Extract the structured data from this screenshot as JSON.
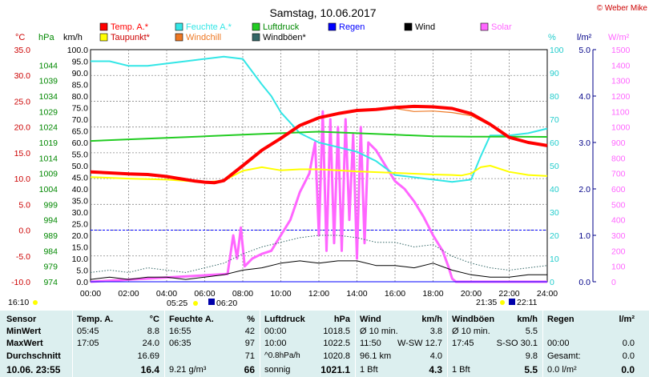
{
  "header": {
    "title": "Samstag, 10.06.2017",
    "copyright": "© Weber Mike"
  },
  "legend": [
    {
      "label": "Temp. A.*",
      "color": "#ff0000"
    },
    {
      "label": "Feuchte A.*",
      "color": "#33e6e6"
    },
    {
      "label": "Luftdruck",
      "color": "#22cc22"
    },
    {
      "label": "Regen",
      "color": "#0000ff"
    },
    {
      "label": "Wind",
      "color": "#000000"
    },
    {
      "label": "Solar",
      "color": "#ff66ff"
    },
    {
      "label": "Taupunkt*",
      "color": "#ffff00"
    },
    {
      "label": "Windchill",
      "color": "#ee7722"
    },
    {
      "label": "Windböen*",
      "color": "#336666"
    }
  ],
  "axes": {
    "temp_unit": "°C",
    "press_unit": "hPa",
    "wind_unit": "km/h",
    "hum_unit": "%",
    "rain_unit": "l/m²",
    "solar_unit": "W/m²",
    "temp_ticks": [
      "35.0",
      "30.0",
      "25.0",
      "20.0",
      "15.0",
      "10.0",
      "5.0",
      "0.0",
      "-5.0",
      "-10.0"
    ],
    "press_ticks": [
      "1044",
      "1039",
      "1034",
      "1029",
      "1024",
      "1019",
      "1014",
      "1009",
      "1004",
      "999",
      "994",
      "989",
      "984",
      "979",
      "974"
    ],
    "wind_ticks": [
      "100.0",
      "95.0",
      "90.0",
      "85.0",
      "80.0",
      "75.0",
      "70.0",
      "65.0",
      "60.0",
      "55.0",
      "50.0",
      "45.0",
      "40.0",
      "35.0",
      "30.0",
      "25.0",
      "20.0",
      "15.0",
      "10.0",
      "5.0",
      "0.0"
    ],
    "hum_ticks": [
      "100",
      "90",
      "80",
      "70",
      "60",
      "50",
      "40",
      "30",
      "20",
      "10",
      "0"
    ],
    "rain_ticks": [
      "5.0",
      "4.0",
      "3.0",
      "2.0",
      "1.0",
      "0.0"
    ],
    "solar_ticks": [
      "1500",
      "1400",
      "1300",
      "1200",
      "1100",
      "1000",
      "900",
      "800",
      "700",
      "600",
      "500",
      "400",
      "300",
      "200",
      "100",
      "0"
    ],
    "time_ticks": [
      "00:00",
      "02:00",
      "04:00",
      "06:00",
      "08:00",
      "10:00",
      "12:00",
      "14:00",
      "16:00",
      "18:00",
      "20:00",
      "22:00",
      "24:00"
    ]
  },
  "sun": {
    "rise_prev": "16:10",
    "rise": "05:25",
    "rise2": "06:20",
    "set": "21:35",
    "set2": "22:11"
  },
  "chart_data": {
    "type": "line",
    "title": "Samstag, 10.06.2017",
    "x_unit": "hours",
    "ylim_temp": [
      -10,
      35
    ],
    "ylim_wind": [
      0,
      100
    ],
    "ylim_pressure": [
      974,
      1049
    ],
    "ylim_humidity": [
      0,
      100
    ],
    "ylim_rain": [
      0,
      5
    ],
    "ylim_solar": [
      0,
      1500
    ],
    "series": [
      {
        "name": "Temp. A.*",
        "axis": "temp",
        "x": [
          0,
          1,
          2,
          3,
          4,
          4.5,
          5,
          5.5,
          6,
          6.5,
          7,
          8,
          9,
          10,
          11,
          12,
          13,
          14,
          15,
          16,
          17,
          18,
          19,
          20,
          21,
          22,
          23,
          24
        ],
        "values": [
          11.3,
          11.1,
          10.9,
          10.8,
          10.4,
          10.1,
          9.8,
          9.5,
          9.3,
          9.2,
          9.6,
          12.5,
          15.5,
          17.8,
          20.3,
          21.8,
          22.6,
          23.2,
          23.4,
          23.8,
          24.0,
          23.9,
          23.6,
          22.6,
          20.5,
          18.0,
          17.0,
          16.4
        ]
      },
      {
        "name": "Taupunkt*",
        "axis": "temp",
        "x": [
          0,
          2,
          4,
          6,
          7,
          8,
          9,
          10,
          11,
          12,
          14,
          16,
          18,
          19,
          19.5,
          20,
          20.5,
          21,
          22,
          23,
          24
        ],
        "values": [
          10.3,
          10.0,
          9.8,
          9.3,
          9.6,
          11.5,
          12.2,
          11.6,
          11.8,
          11.8,
          11.4,
          11.1,
          10.8,
          10.7,
          10.6,
          11.0,
          12.2,
          12.5,
          11.3,
          10.7,
          10.5
        ]
      },
      {
        "name": "Windchill",
        "axis": "temp",
        "x": [
          16,
          17,
          18,
          19,
          20,
          21
        ],
        "values": [
          23.6,
          23.0,
          23.1,
          22.8,
          22.2,
          20.3
        ]
      },
      {
        "name": "Feuchte A.*",
        "axis": "humidity",
        "x": [
          0,
          1,
          2,
          3,
          4,
          5,
          6,
          7,
          8,
          9,
          9.5,
          10,
          11,
          12,
          13,
          14,
          15,
          15.5,
          16,
          17,
          18,
          19,
          20,
          20.5,
          21,
          22,
          23,
          24
        ],
        "values": [
          95,
          95,
          93,
          93,
          94,
          95,
          96,
          97,
          96,
          85,
          80,
          73,
          64,
          60,
          58,
          56,
          52,
          49,
          46,
          45,
          44,
          43,
          44,
          54,
          63,
          63,
          64,
          66
        ]
      },
      {
        "name": "Luftdruck",
        "axis": "pressure",
        "x": [
          0,
          2,
          4,
          6,
          8,
          10,
          12,
          14,
          16,
          18,
          20,
          22,
          24
        ],
        "values": [
          1019.5,
          1020.0,
          1020.5,
          1021.0,
          1021.5,
          1022.0,
          1022.5,
          1022.0,
          1021.5,
          1021.0,
          1020.9,
          1020.9,
          1020.8
        ]
      },
      {
        "name": "Wind",
        "axis": "wind",
        "x": [
          0,
          1,
          2,
          3,
          4,
          5,
          6,
          7,
          8,
          9,
          10,
          11,
          12,
          13,
          14,
          15,
          16,
          17,
          18,
          19,
          20,
          21,
          22,
          23,
          24
        ],
        "values": [
          1,
          2,
          1,
          2,
          2,
          1,
          2,
          3,
          5,
          6,
          8,
          9,
          8,
          9,
          9,
          7,
          7,
          6,
          8,
          5,
          3,
          2,
          2,
          3,
          3
        ]
      },
      {
        "name": "Windböen*",
        "axis": "wind",
        "x": [
          0,
          1,
          2,
          3,
          4,
          5,
          6,
          7,
          8,
          9,
          10,
          11,
          12,
          13,
          14,
          15,
          16,
          17,
          18,
          19,
          20,
          21,
          22,
          23,
          24
        ],
        "values": [
          4,
          5,
          4,
          6,
          5,
          4,
          6,
          8,
          12,
          15,
          17,
          19,
          20,
          20,
          19,
          17,
          17,
          15,
          16,
          11,
          8,
          6,
          5,
          6,
          7
        ]
      },
      {
        "name": "Solar",
        "axis": "solar",
        "x": [
          0,
          7.2,
          7.5,
          7.7,
          7.9,
          8.1,
          8.5,
          9.0,
          9.5,
          10,
          10.5,
          11,
          11.5,
          11.8,
          12.0,
          12.2,
          12.4,
          12.6,
          12.8,
          13.0,
          13.2,
          13.4,
          13.6,
          13.8,
          14.0,
          14.2,
          14.4,
          14.6,
          15,
          15.5,
          16,
          16.5,
          17,
          17.5,
          18,
          18.5,
          18.8,
          19.0,
          19.2,
          24
        ],
        "values": [
          0,
          50,
          300,
          150,
          350,
          100,
          150,
          180,
          200,
          300,
          400,
          580,
          700,
          900,
          300,
          1100,
          200,
          1050,
          250,
          1000,
          200,
          1050,
          400,
          950,
          150,
          1000,
          250,
          900,
          850,
          750,
          650,
          600,
          520,
          420,
          300,
          200,
          100,
          20,
          0,
          0
        ]
      },
      {
        "name": "Regen",
        "axis": "rain",
        "x": [
          0,
          24
        ],
        "values": [
          0,
          0
        ]
      }
    ]
  },
  "stats": {
    "sensor": {
      "h": "Sensor",
      "rows": [
        "MinWert",
        "MaxWert",
        "Durchschnitt"
      ],
      "date": "10.06. 23:55"
    },
    "temp": {
      "h": "Temp. A.",
      "u": "°C",
      "r1": [
        "05:45",
        "8.8"
      ],
      "r2": [
        "17:05",
        "24.0"
      ],
      "r3": [
        "",
        "16.69"
      ],
      "cur": "16.4"
    },
    "hum": {
      "h": "Feuchte A.",
      "u": "%",
      "r1": [
        "16:55",
        "42"
      ],
      "r2": [
        "06:35",
        "97"
      ],
      "r3": [
        "",
        "71"
      ],
      "cur_l": "9.21 g/m³",
      "cur": "66"
    },
    "press": {
      "h": "Luftdruck",
      "u": "hPa",
      "r1": [
        "00:00",
        "1018.5"
      ],
      "r2": [
        "10:00",
        "1022.5"
      ],
      "r3": [
        "^0.8hPa/h",
        "1020.8"
      ],
      "cur_l": "sonnig",
      "cur": "1021.1"
    },
    "wind": {
      "h": "Wind",
      "u": "km/h",
      "r1": [
        "Ø 10 min.",
        "3.8"
      ],
      "r2": [
        "11:50",
        "W-SW 12.7"
      ],
      "r3": [
        "96.1 km",
        "4.0"
      ],
      "cur_l": "1 Bft",
      "cur": "4.3"
    },
    "gust": {
      "h": "Windböen",
      "u": "km/h",
      "r1": [
        "Ø 10 min.",
        "5.5"
      ],
      "r2": [
        "17:45",
        "S-SO 30.1"
      ],
      "r3": [
        "",
        "9.8"
      ],
      "cur_l": "1 Bft",
      "cur": "5.5"
    },
    "rain": {
      "h": "Regen",
      "u": "l/m²",
      "r2": [
        "00:00",
        "0.0"
      ],
      "r3": [
        "Gesamt:",
        "0.0"
      ],
      "cur_l": "0.0 l/m²",
      "cur": "0.0"
    }
  }
}
